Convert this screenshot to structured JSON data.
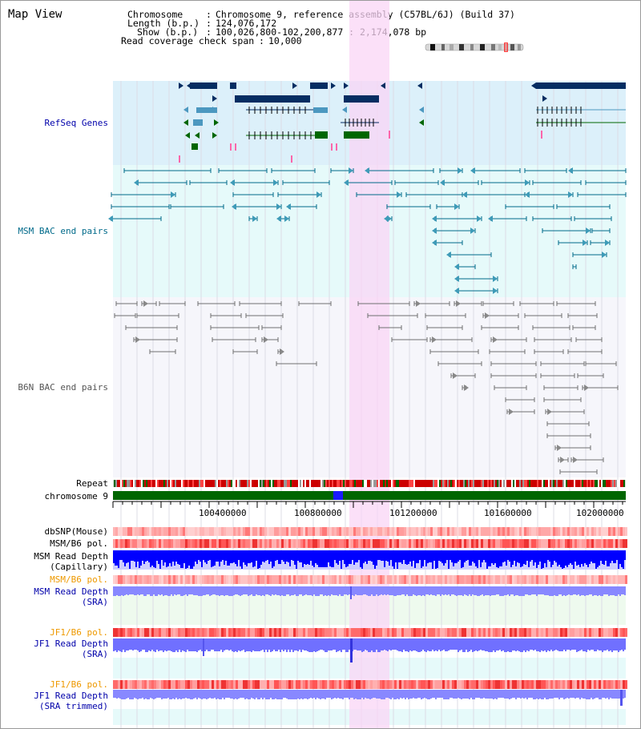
{
  "page": {
    "title": "Map View"
  },
  "info": {
    "chromosome_label": "Chromosome",
    "chromosome_value": "Chromosome 9, reference assembly (C57BL/6J) (Build 37)",
    "length_label": "Length (b.p.)",
    "length_value": "124,076,172",
    "show_label": "Show (b.p.)",
    "show_value": "100,026,800-102,200,877 : 2,174,078 bp",
    "span_label": "Read coverage check span",
    "span_value": "10,000"
  },
  "tracks": {
    "refseq": "RefSeq Genes",
    "msm_bac": "MSM BAC end pairs",
    "b6n_bac": "B6N BAC end pairs",
    "repeat": "Repeat",
    "chromosome": "chromosome 9",
    "dbsnp": "dbSNP(Mouse)",
    "msm_b6_pol_1": "MSM/B6 pol.",
    "msm_depth_cap_1": "MSM Read Depth",
    "msm_depth_cap_2": "(Capillary)",
    "msm_b6_pol_2": "MSM/B6 pol.",
    "msm_depth_sra_1": "MSM Read Depth",
    "msm_depth_sra_2": "(SRA)",
    "jf1_b6_pol_1": "JF1/B6 pol.",
    "jf1_depth_sra_1": "JF1 Read Depth",
    "jf1_depth_sra_2": "(SRA)",
    "jf1_b6_pol_2": "JF1/B6 pol.",
    "jf1_depth_trim_1": "JF1 Read Depth",
    "jf1_depth_trim_2": "(SRA trimmed)"
  },
  "axis": {
    "ticks": [
      "100400000",
      "100800000",
      "101200000",
      "101600000",
      "102000000"
    ]
  },
  "colors": {
    "refseq_bg": "#dcf0fa",
    "msm_bg": "#e6fafa",
    "b6n_bg": "#f6f6fb",
    "highlight": "#f9d6f5",
    "dark_gene": "#052d62",
    "light_gene": "#4c98c0",
    "green_gene": "#006600",
    "msm_line": "#006a8a",
    "b6n_line": "#707070",
    "chrom_green": "#006600",
    "depth_blue": "#0000ff",
    "depth_violet": "#7777ff",
    "label_blue": "#0000aa",
    "label_orange": "#ee9900",
    "label_teal": "#006a8a"
  }
}
